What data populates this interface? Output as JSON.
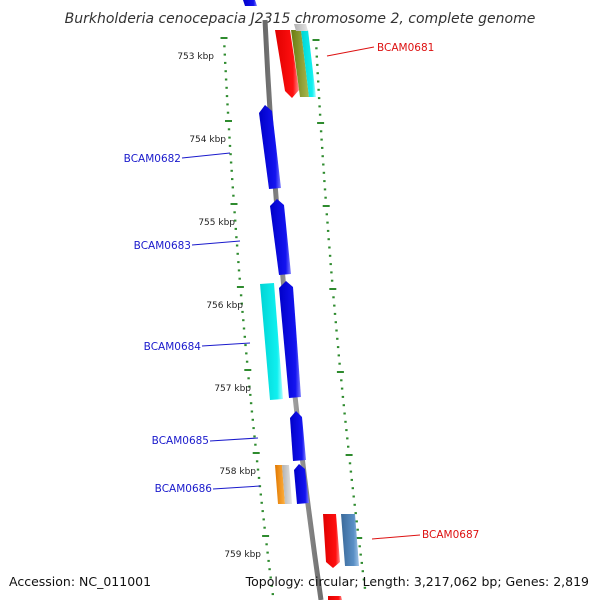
{
  "title": "Burkholderia cenocepacia J2315 chromosome 2, complete genome",
  "footer": {
    "accession": "Accession: NC_011001",
    "topology": "Topology: circular; Length: 3,217,062 bp; Genes: 2,819"
  },
  "scale_labels": [
    "753 kbp",
    "754 kbp",
    "755 kbp",
    "756 kbp",
    "757 kbp",
    "758 kbp",
    "759 kbp"
  ],
  "gene_labels": [
    {
      "id": "BCAM0681",
      "strand": "forward"
    },
    {
      "id": "BCAM0682",
      "strand": "reverse"
    },
    {
      "id": "BCAM0683",
      "strand": "reverse"
    },
    {
      "id": "BCAM0684",
      "strand": "reverse"
    },
    {
      "id": "BCAM0685",
      "strand": "reverse"
    },
    {
      "id": "BCAM0686",
      "strand": "reverse"
    },
    {
      "id": "BCAM0687",
      "strand": "forward"
    }
  ],
  "colors": {
    "backbone": "#8a8a8a",
    "scale_ticks": "#2e8b2e",
    "reverse_label": "#1a1acc",
    "forward_label": "#dd1111",
    "gene_blue": "#1010dd",
    "gene_cyan": "#00e0e0",
    "gene_red": "#ee0000",
    "gene_olive": "#7a8a1a",
    "gene_orange": "#ee8800",
    "gene_steelblue": "#4a7fb5",
    "gene_gray": "#c0c0c0"
  }
}
